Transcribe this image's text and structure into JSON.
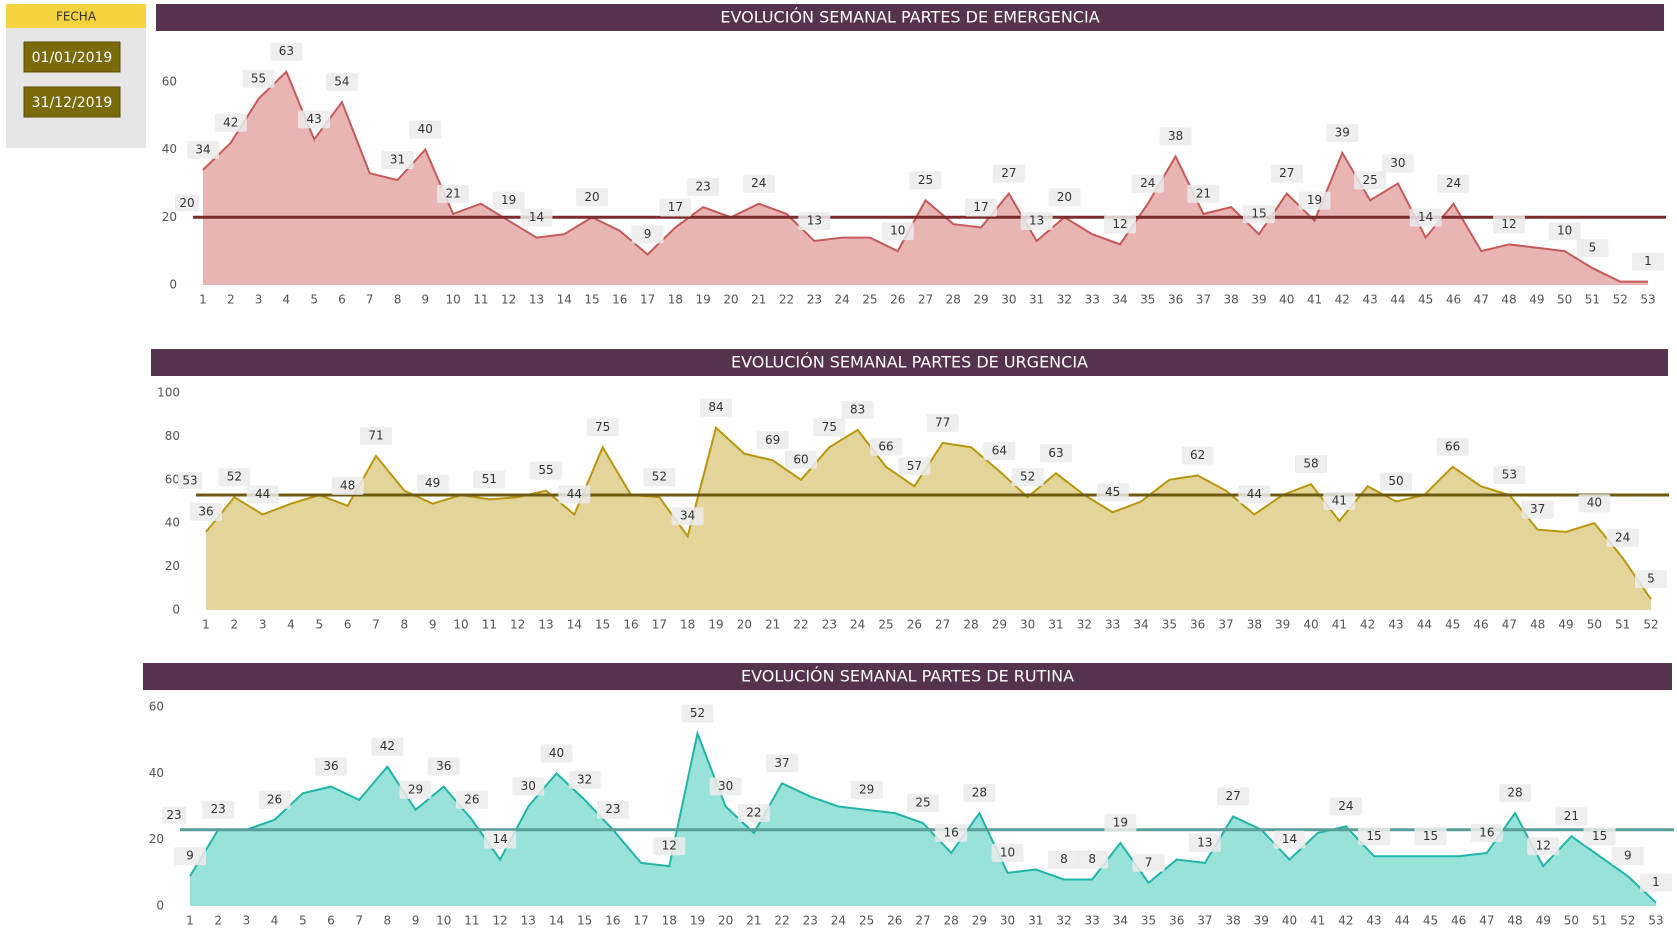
{
  "filter": {
    "label": "FECHA",
    "start": "01/01/2019",
    "end": "31/12/2019"
  },
  "chart_data": [
    {
      "type": "area",
      "title": "EVOLUCIÓN SEMANAL PARTES DE EMERGENCIA",
      "categories": [
        1,
        2,
        3,
        4,
        5,
        6,
        7,
        8,
        9,
        10,
        11,
        12,
        13,
        14,
        15,
        16,
        17,
        18,
        19,
        20,
        21,
        22,
        23,
        24,
        25,
        26,
        27,
        28,
        29,
        30,
        31,
        32,
        33,
        34,
        35,
        36,
        37,
        38,
        39,
        40,
        41,
        42,
        43,
        44,
        45,
        46,
        47,
        48,
        49,
        50,
        51,
        52,
        53
      ],
      "values": [
        34,
        42,
        55,
        63,
        43,
        54,
        33,
        31,
        40,
        21,
        24,
        19,
        14,
        15,
        20,
        16,
        9,
        17,
        23,
        20,
        24,
        21,
        13,
        14,
        14,
        10,
        25,
        18,
        17,
        27,
        13,
        20,
        15,
        12,
        24,
        38,
        21,
        23,
        15,
        27,
        19,
        39,
        25,
        30,
        14,
        24,
        10,
        12,
        11,
        10,
        5,
        1,
        1
      ],
      "value_labels": [
        34,
        42,
        55,
        63,
        43,
        54,
        null,
        31,
        40,
        21,
        null,
        19,
        14,
        null,
        20,
        null,
        9,
        17,
        23,
        null,
        24,
        null,
        13,
        null,
        null,
        10,
        25,
        null,
        17,
        27,
        13,
        20,
        null,
        12,
        24,
        38,
        21,
        null,
        15,
        27,
        19,
        39,
        25,
        30,
        14,
        24,
        null,
        12,
        null,
        10,
        5,
        null,
        1
      ],
      "color": "#c65a5a",
      "fill_color": "#e8b4b4",
      "ylim": [
        0,
        70
      ],
      "yticks": [
        0,
        20,
        40,
        60
      ],
      "reference_line": {
        "value": 20,
        "color": "#7b2b2b"
      }
    },
    {
      "type": "area",
      "title": "EVOLUCIÓN SEMANAL PARTES DE URGENCIA",
      "categories": [
        1,
        2,
        3,
        4,
        5,
        6,
        7,
        8,
        9,
        10,
        11,
        12,
        13,
        14,
        15,
        16,
        17,
        18,
        19,
        20,
        21,
        22,
        23,
        24,
        25,
        26,
        27,
        28,
        29,
        30,
        31,
        32,
        33,
        34,
        35,
        36,
        37,
        38,
        39,
        40,
        41,
        42,
        43,
        44,
        45,
        46,
        47,
        48,
        49,
        50,
        51,
        52
      ],
      "values": [
        36,
        52,
        44,
        49,
        53,
        48,
        71,
        55,
        49,
        53,
        51,
        52,
        55,
        44,
        75,
        53,
        52,
        34,
        84,
        72,
        69,
        60,
        75,
        83,
        66,
        57,
        77,
        75,
        64,
        52,
        63,
        53,
        45,
        50,
        60,
        62,
        55,
        44,
        53,
        58,
        41,
        57,
        50,
        53,
        66,
        57,
        53,
        37,
        36,
        40,
        24,
        5
      ],
      "value_labels": [
        36,
        52,
        44,
        null,
        null,
        48,
        71,
        null,
        49,
        null,
        51,
        null,
        55,
        44,
        75,
        null,
        52,
        34,
        84,
        null,
        69,
        60,
        75,
        83,
        66,
        57,
        77,
        null,
        64,
        52,
        63,
        null,
        45,
        null,
        null,
        62,
        null,
        44,
        null,
        58,
        41,
        null,
        50,
        null,
        66,
        null,
        53,
        37,
        null,
        40,
        24,
        5
      ],
      "color": "#b8960f",
      "fill_color": "#e3d599",
      "ylim": [
        0,
        100
      ],
      "yticks": [
        0,
        20,
        40,
        60,
        80,
        100
      ],
      "reference_line": {
        "value": 53,
        "color": "#6b5a10"
      }
    },
    {
      "type": "area",
      "title": "EVOLUCIÓN SEMANAL PARTES DE RUTINA",
      "categories": [
        1,
        2,
        3,
        4,
        5,
        6,
        7,
        8,
        9,
        10,
        11,
        12,
        13,
        14,
        15,
        16,
        17,
        18,
        19,
        20,
        21,
        22,
        23,
        24,
        25,
        26,
        27,
        28,
        29,
        30,
        31,
        32,
        33,
        34,
        35,
        36,
        37,
        38,
        39,
        40,
        41,
        42,
        43,
        44,
        45,
        46,
        47,
        48,
        49,
        50,
        51,
        52,
        53
      ],
      "values": [
        9,
        23,
        23,
        26,
        34,
        36,
        32,
        42,
        29,
        36,
        26,
        14,
        30,
        40,
        32,
        23,
        13,
        12,
        52,
        30,
        22,
        37,
        33,
        30,
        29,
        28,
        25,
        16,
        28,
        10,
        11,
        8,
        8,
        19,
        7,
        14,
        13,
        27,
        23,
        14,
        22,
        24,
        15,
        15,
        15,
        15,
        16,
        28,
        12,
        21,
        15,
        9,
        1
      ],
      "value_labels": [
        9,
        23,
        null,
        26,
        null,
        36,
        null,
        42,
        29,
        36,
        26,
        14,
        30,
        40,
        32,
        23,
        null,
        12,
        52,
        30,
        22,
        37,
        null,
        null,
        29,
        null,
        25,
        16,
        28,
        10,
        null,
        8,
        8,
        19,
        7,
        null,
        13,
        27,
        null,
        14,
        null,
        24,
        15,
        null,
        15,
        null,
        16,
        28,
        12,
        21,
        15,
        9,
        1
      ],
      "color": "#20b5a6",
      "fill_color": "#98e2da",
      "ylim": [
        0,
        60
      ],
      "yticks": [
        0,
        20,
        40,
        60
      ],
      "reference_line": {
        "value": 23,
        "color": "#5a9e98"
      }
    }
  ]
}
